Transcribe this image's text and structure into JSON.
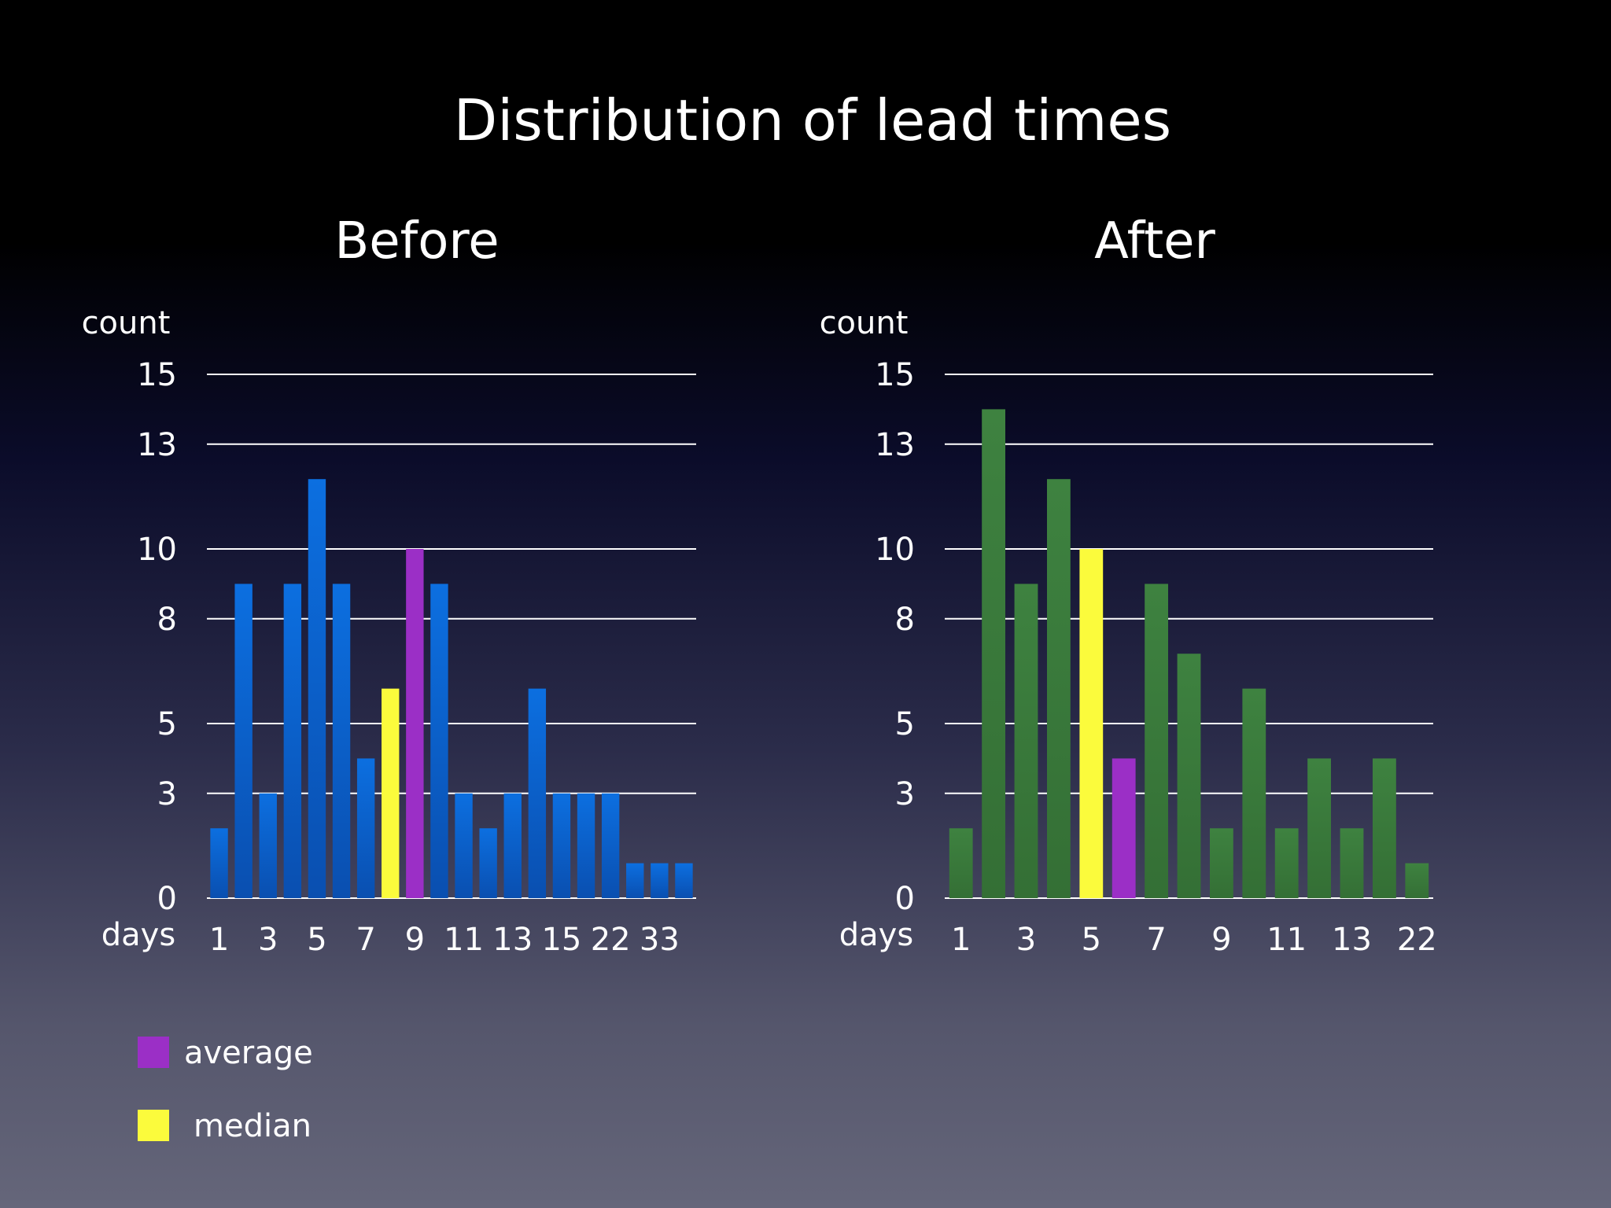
{
  "title": "Distribution of lead times",
  "legend": [
    {
      "label": "average",
      "color": "#9b2fc6"
    },
    {
      "label": "median",
      "color": "#fbfb3c"
    }
  ],
  "chart_data": [
    {
      "type": "bar",
      "subtitle": "Before",
      "ylabel": "count",
      "xlabel": "days",
      "ylim": [
        0,
        15
      ],
      "y_ticks": [
        0,
        3,
        5,
        8,
        10,
        13,
        15
      ],
      "grid": true,
      "bar_color": "#0a5fd0",
      "x_tick_labels": [
        "1",
        "3",
        "5",
        "7",
        "9",
        "11",
        "13",
        "15",
        "22",
        "33"
      ],
      "bars": [
        {
          "value": 2
        },
        {
          "value": 9
        },
        {
          "value": 3
        },
        {
          "value": 9
        },
        {
          "value": 12
        },
        {
          "value": 9
        },
        {
          "value": 4
        },
        {
          "value": 6,
          "color": "#fbfb3c"
        },
        {
          "value": 10,
          "color": "#9b2fc6"
        },
        {
          "value": 9
        },
        {
          "value": 3
        },
        {
          "value": 2
        },
        {
          "value": 3
        },
        {
          "value": 6
        },
        {
          "value": 3
        },
        {
          "value": 3
        },
        {
          "value": 3
        },
        {
          "value": 1
        },
        {
          "value": 1
        },
        {
          "value": 1
        }
      ]
    },
    {
      "type": "bar",
      "subtitle": "After",
      "ylabel": "count",
      "xlabel": "days",
      "ylim": [
        0,
        15
      ],
      "y_ticks": [
        0,
        3,
        5,
        8,
        10,
        13,
        15
      ],
      "grid": true,
      "bar_color": "#3a7a3a",
      "x_tick_labels": [
        "1",
        "3",
        "5",
        "7",
        "9",
        "11",
        "13",
        "22"
      ],
      "bars": [
        {
          "value": 2
        },
        {
          "value": 14
        },
        {
          "value": 9
        },
        {
          "value": 12
        },
        {
          "value": 10,
          "color": "#fbfb3c"
        },
        {
          "value": 4,
          "color": "#9b2fc6"
        },
        {
          "value": 9
        },
        {
          "value": 7
        },
        {
          "value": 2
        },
        {
          "value": 6
        },
        {
          "value": 2
        },
        {
          "value": 4
        },
        {
          "value": 2
        },
        {
          "value": 4
        },
        {
          "value": 1
        }
      ]
    }
  ]
}
